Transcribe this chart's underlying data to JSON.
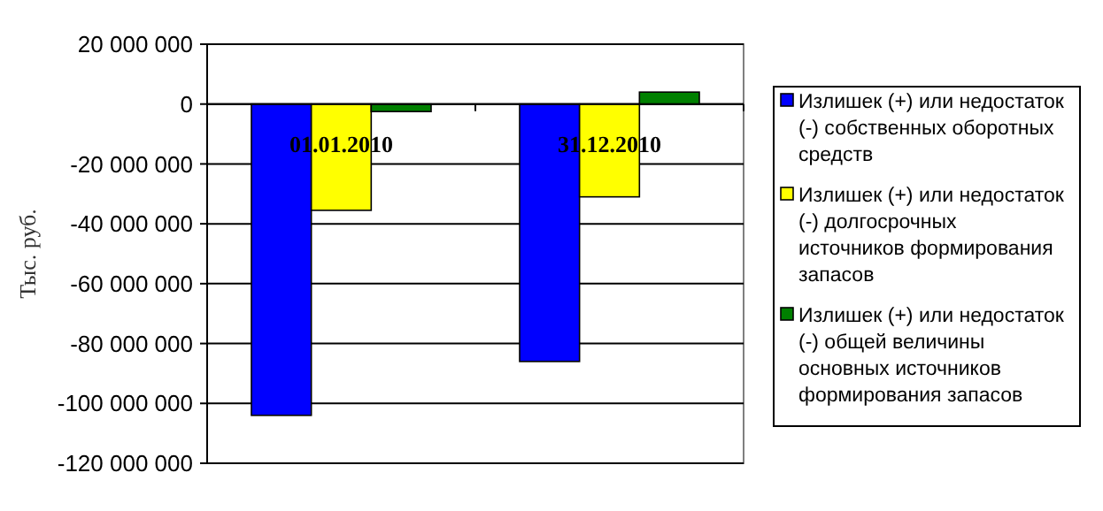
{
  "chart_data": {
    "type": "bar",
    "categories": [
      "01.01.2010",
      "31.12.2010"
    ],
    "series": [
      {
        "name": "Излишек (+) или недостаток (-) собственных оборотных средств",
        "color": "#0000ff",
        "values": [
          -104000000,
          -86000000
        ]
      },
      {
        "name": "Излишек (+) или недостаток (-) долгосрочных источников формирования запасов",
        "color": "#ffff00",
        "values": [
          -35500000,
          -31000000
        ]
      },
      {
        "name": "Излишек (+) или недостаток (-) общей величины основных источников формирования запасов",
        "color": "#008000",
        "values": [
          -2500000,
          4000000
        ]
      }
    ],
    "ylabel": "Тыс. руб.",
    "ylim": [
      -120000000,
      20000000
    ],
    "yticks": [
      {
        "value": 20000000,
        "label": "20 000 000"
      },
      0,
      {
        "value": -20000000,
        "label": "-20 000 000"
      },
      {
        "value": -40000000,
        "label": "-40 000 000"
      },
      {
        "value": -60000000,
        "label": "-60 000 000"
      },
      {
        "value": -80000000,
        "label": "-80 000 000"
      },
      {
        "value": -100000000,
        "label": "-100 000 000"
      },
      {
        "value": -120000000,
        "label": "-120 000 000"
      }
    ],
    "grid": "y",
    "legend": "right"
  }
}
